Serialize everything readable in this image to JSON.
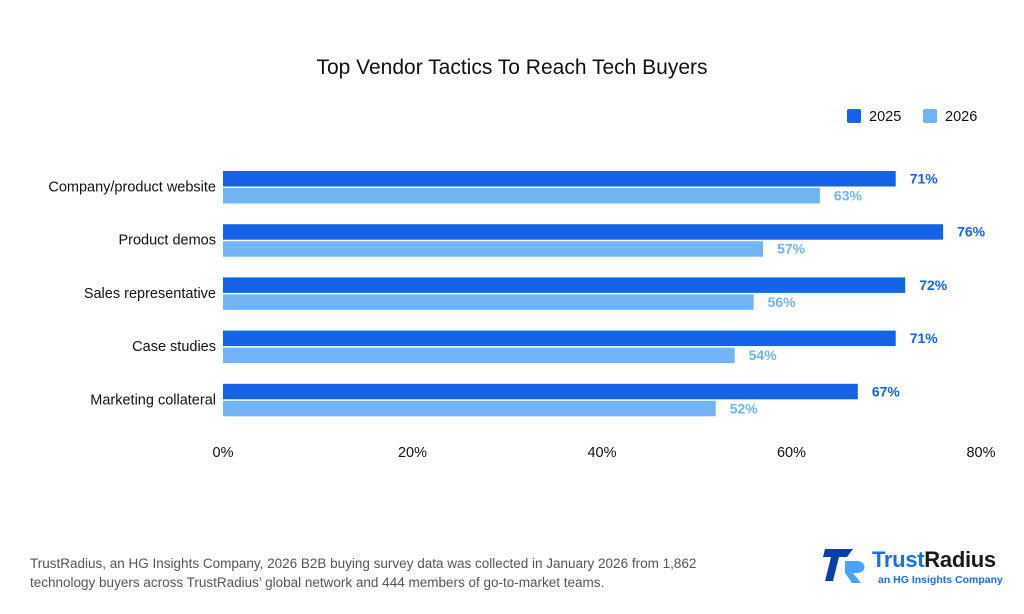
{
  "chart_data": {
    "type": "bar",
    "orientation": "horizontal",
    "title": "Top Vendor Tactics To Reach Tech Buyers",
    "xlabel": "",
    "ylabel": "",
    "xlim": [
      0,
      80
    ],
    "x_tick_labels": [
      "0%",
      "20%",
      "40%",
      "60%",
      "80%"
    ],
    "categories": [
      "Company/product website",
      "Product demos",
      "Sales representative",
      "Case studies",
      "Marketing collateral"
    ],
    "series": [
      {
        "name": "2025",
        "color": "#1463e6",
        "values": [
          71,
          76,
          72,
          71,
          67
        ],
        "labels": [
          "71%",
          "76%",
          "72%",
          "71%",
          "67%"
        ]
      },
      {
        "name": "2026",
        "color": "#72b3f5",
        "values": [
          63,
          57,
          56,
          54,
          52
        ],
        "labels": [
          "63%",
          "57%",
          "56%",
          "54%",
          "52%"
        ]
      }
    ],
    "legend": "top-right",
    "grid": false
  },
  "footer": {
    "note": "TrustRadius, an HG Insights Company, 2026 B2B buying survey data was collected in January 2026 from 1,862 technology buyers across TrustRadius’ global network and 444 members of go-to-market teams."
  },
  "logo": {
    "wordmark": "TrustRadius",
    "tagline": "an HG Insights Company",
    "icon": "trustradius-tr-logo-icon",
    "colors": {
      "trust": "#1f6cf0",
      "radius": "#1a1a1a",
      "mark_dark": "#0b3fa8",
      "mark_light": "#4aa3ff"
    }
  }
}
